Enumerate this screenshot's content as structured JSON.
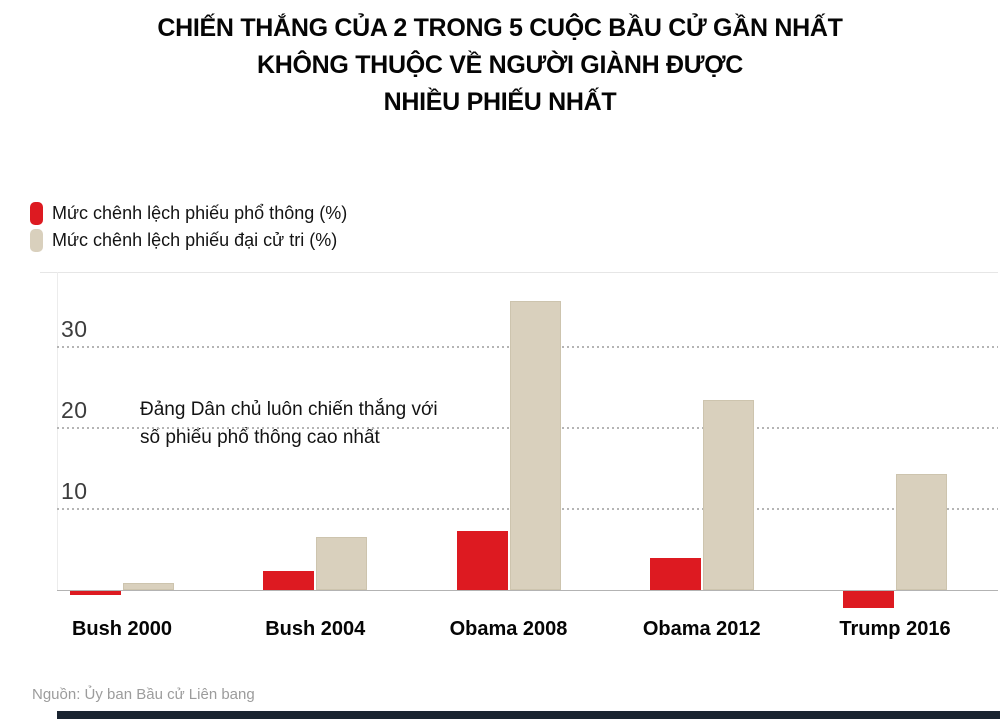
{
  "title": {
    "line1": "CHIẾN THẮNG CỦA 2 TRONG 5 CUỘC BẦU CỬ GẦN NHẤT",
    "line2": "KHÔNG THUỘC VỀ NGƯỜI GIÀNH ĐƯỢC",
    "line3": "NHIỀU PHIẾU NHẤT"
  },
  "legend": [
    {
      "label": "Mức chênh lệch phiếu phổ thông (%)",
      "series": "popular"
    },
    {
      "label": "Mức chênh lệch phiếu đại cử tri (%)",
      "series": "electoral"
    }
  ],
  "annotation": {
    "line1": "Đảng Dân chủ luôn chiến thắng với",
    "line2": "số phiếu phổ thông cao nhất"
  },
  "source": "Nguồn: Ủy ban Bầu cử Liên bang",
  "colors": {
    "popular": "#dd1a21",
    "electoral": "#d9d0bd",
    "electoral_border": "#cdc4ae",
    "gridline": "#b5b5b5",
    "baseline": "#b3b3b3",
    "bottom_bar": "#1a2430"
  },
  "chart_data": {
    "type": "bar",
    "categories": [
      "Bush 2000",
      "Bush 2004",
      "Obama 2008",
      "Obama 2012",
      "Trump 2016"
    ],
    "series": [
      {
        "name": "Mức chênh lệch phiếu phổ thông (%)",
        "color": "#dd1a21",
        "values": [
          -0.5,
          2.4,
          7.3,
          3.9,
          -2.1
        ]
      },
      {
        "name": "Mức chênh lệch phiếu đại cử tri (%)",
        "color": "#d9d0bd",
        "values": [
          0.9,
          6.5,
          35.7,
          23.4,
          14.3
        ]
      }
    ],
    "yticks": [
      10,
      20,
      30
    ],
    "ylim": [
      -3,
      39
    ],
    "grid": "horizontal-dotted",
    "legend_position": "top-left",
    "annotation": "Đảng Dân chủ luôn chiến thắng với số phiếu phổ thông cao nhất",
    "title": "Chiến thắng của 2 trong 5 cuộc bầu cử gần nhất không thuộc về người giành được nhiều phiếu nhất",
    "source": "Nguồn: Ủy ban Bầu cử Liên bang"
  }
}
